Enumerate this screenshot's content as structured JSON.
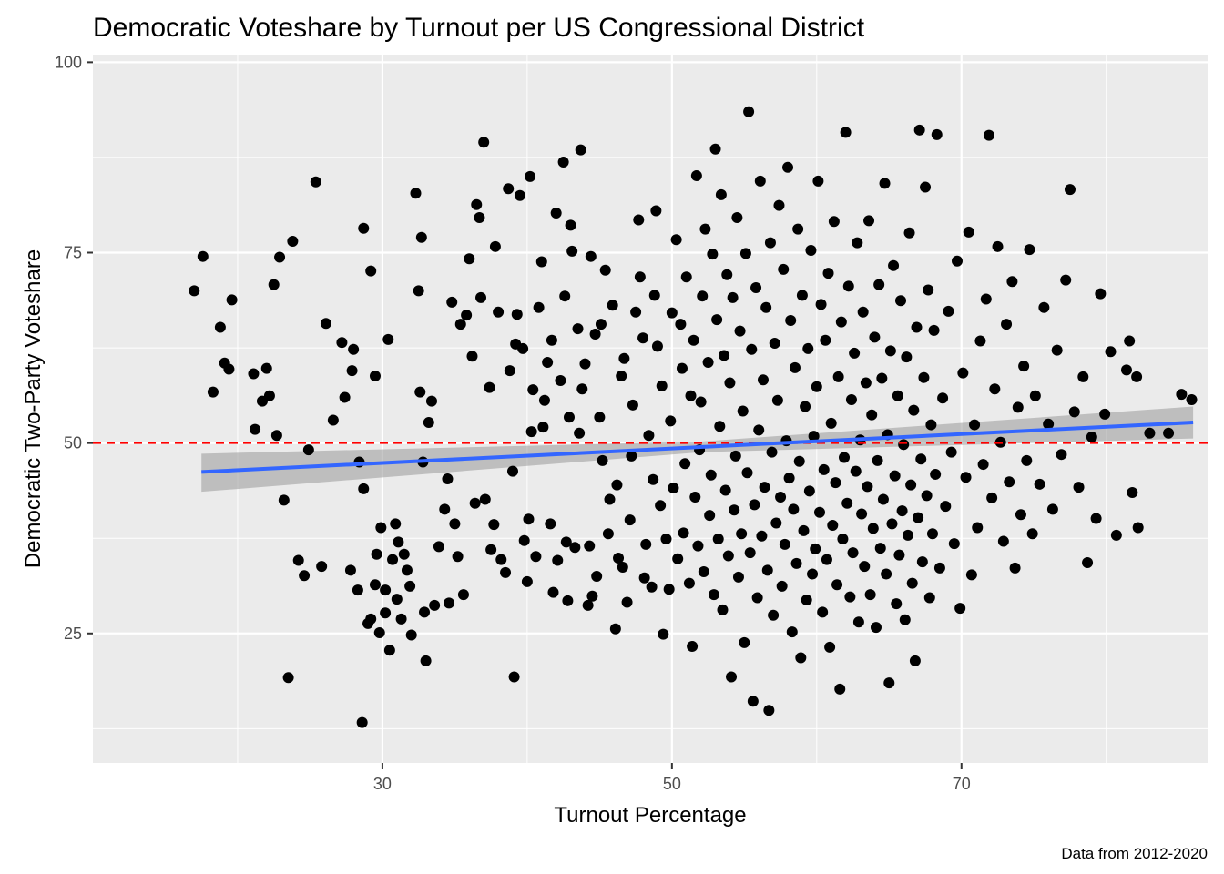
{
  "chart_data": {
    "type": "scatter",
    "title": "Democratic Voteshare by Turnout per US Congressional District",
    "xlabel": "Turnout Percentage",
    "ylabel": "Democratic Two-Party Voteshare",
    "caption": "Data from 2012-2020",
    "xlim": [
      10,
      87
    ],
    "ylim": [
      8,
      101
    ],
    "x_ticks": [
      30,
      50,
      70
    ],
    "y_ticks": [
      25,
      50,
      75,
      100
    ],
    "x_minor": [
      20,
      40,
      60,
      80
    ],
    "y_minor": [
      12.5,
      37.5,
      62.5,
      87.5
    ],
    "reference_line": {
      "y": 50,
      "color": "#ff0000",
      "style": "dashed"
    },
    "trend_line": {
      "x": [
        17.5,
        86
      ],
      "y": [
        46.2,
        52.7
      ],
      "color": "#3366ff"
    },
    "confidence_band": {
      "x": [
        17.5,
        52,
        86
      ],
      "lower": [
        43.6,
        48.8,
        50.6
      ],
      "upper": [
        48.6,
        50.2,
        54.8
      ],
      "color": "#999999"
    },
    "point_color": "#000000",
    "points": [
      [
        17,
        70
      ],
      [
        17.6,
        74.5
      ],
      [
        18.3,
        56.7
      ],
      [
        18.8,
        65.2
      ],
      [
        19.1,
        60.5
      ],
      [
        19.6,
        68.8
      ],
      [
        19.4,
        59.7
      ],
      [
        21.1,
        59.1
      ],
      [
        21.2,
        51.8
      ],
      [
        21.7,
        55.5
      ],
      [
        22,
        59.8
      ],
      [
        22.2,
        56.2
      ],
      [
        22.5,
        70.8
      ],
      [
        22.7,
        51
      ],
      [
        22.9,
        74.4
      ],
      [
        23.2,
        42.5
      ],
      [
        23.5,
        19.2
      ],
      [
        23.8,
        76.5
      ],
      [
        24.2,
        34.6
      ],
      [
        24.6,
        32.6
      ],
      [
        24.9,
        49.1
      ],
      [
        25.4,
        84.3
      ],
      [
        25.8,
        33.8
      ],
      [
        26.1,
        65.7
      ],
      [
        26.6,
        53
      ],
      [
        27.2,
        63.2
      ],
      [
        27.8,
        33.3
      ],
      [
        28.3,
        30.7
      ],
      [
        27.4,
        56
      ],
      [
        27.9,
        59.5
      ],
      [
        28.7,
        78.2
      ],
      [
        28.7,
        44
      ],
      [
        28,
        62.3
      ],
      [
        28.4,
        47.5
      ],
      [
        28.6,
        13.3
      ],
      [
        29,
        26.3
      ],
      [
        29.2,
        72.6
      ],
      [
        29.5,
        58.8
      ],
      [
        29.5,
        31.4
      ],
      [
        29.2,
        26.9
      ],
      [
        29.6,
        35.4
      ],
      [
        29.8,
        25.1
      ],
      [
        29.9,
        38.9
      ],
      [
        30.2,
        30.7
      ],
      [
        30.2,
        27.7
      ],
      [
        30.4,
        63.6
      ],
      [
        30.5,
        22.8
      ],
      [
        30.7,
        34.7
      ],
      [
        30.9,
        39.4
      ],
      [
        31,
        29.5
      ],
      [
        31.1,
        37
      ],
      [
        31.3,
        26.9
      ],
      [
        31.5,
        35.4
      ],
      [
        31.7,
        33.3
      ],
      [
        31.9,
        31.2
      ],
      [
        32,
        24.8
      ],
      [
        32.3,
        82.8
      ],
      [
        32.5,
        70
      ],
      [
        32.6,
        56.7
      ],
      [
        32.7,
        77
      ],
      [
        32.8,
        47.5
      ],
      [
        32.9,
        27.8
      ],
      [
        33,
        21.4
      ],
      [
        33.2,
        52.7
      ],
      [
        33.4,
        55.5
      ],
      [
        33.6,
        28.7
      ],
      [
        33.9,
        36.4
      ],
      [
        34.3,
        41.3
      ],
      [
        34.5,
        45.3
      ],
      [
        34.8,
        68.5
      ],
      [
        34.6,
        29
      ],
      [
        35,
        39.4
      ],
      [
        35.2,
        35.1
      ],
      [
        35.4,
        65.6
      ],
      [
        35.6,
        30.1
      ],
      [
        35.8,
        66.8
      ],
      [
        36,
        74.2
      ],
      [
        36.2,
        61.4
      ],
      [
        36.4,
        42.1
      ],
      [
        36.5,
        81.3
      ],
      [
        36.7,
        79.6
      ],
      [
        36.8,
        69.1
      ],
      [
        37,
        89.5
      ],
      [
        37.1,
        42.6
      ],
      [
        37.4,
        57.3
      ],
      [
        37.5,
        36
      ],
      [
        37.7,
        39.3
      ],
      [
        37.8,
        75.8
      ],
      [
        38,
        67.2
      ],
      [
        38.2,
        34.7
      ],
      [
        38.5,
        33
      ],
      [
        38.7,
        83.4
      ],
      [
        38.8,
        59.5
      ],
      [
        39,
        46.3
      ],
      [
        39.1,
        19.3
      ],
      [
        39.2,
        63
      ],
      [
        39.3,
        66.9
      ],
      [
        39.5,
        82.5
      ],
      [
        39.7,
        62.4
      ],
      [
        39.8,
        37.2
      ],
      [
        40,
        31.8
      ],
      [
        40.1,
        40
      ],
      [
        40.2,
        85
      ],
      [
        40.3,
        51.5
      ],
      [
        40.4,
        57
      ],
      [
        40.6,
        35.1
      ],
      [
        40.8,
        67.8
      ],
      [
        41,
        73.8
      ],
      [
        41.1,
        52.1
      ],
      [
        41.2,
        55.6
      ],
      [
        41.4,
        60.6
      ],
      [
        41.6,
        39.4
      ],
      [
        41.7,
        63.5
      ],
      [
        41.8,
        30.4
      ],
      [
        42,
        80.2
      ],
      [
        42.1,
        34.6
      ],
      [
        42.3,
        58.2
      ],
      [
        42.5,
        86.9
      ],
      [
        42.6,
        69.3
      ],
      [
        42.7,
        37
      ],
      [
        42.8,
        29.3
      ],
      [
        42.9,
        53.4
      ],
      [
        43,
        78.6
      ],
      [
        43.1,
        75.2
      ],
      [
        43.3,
        36.3
      ],
      [
        43.5,
        65
      ],
      [
        43.6,
        51.3
      ],
      [
        43.7,
        88.5
      ],
      [
        43.8,
        57.1
      ],
      [
        44,
        60.4
      ],
      [
        44.2,
        28.7
      ],
      [
        44.3,
        36.5
      ],
      [
        44.4,
        74.5
      ],
      [
        44.5,
        29.9
      ],
      [
        44.7,
        64.3
      ],
      [
        44.8,
        32.5
      ],
      [
        45,
        53.4
      ],
      [
        45.1,
        65.6
      ],
      [
        45.2,
        47.7
      ],
      [
        45.4,
        72.7
      ],
      [
        45.6,
        38.1
      ],
      [
        45.7,
        42.6
      ],
      [
        45.9,
        68.1
      ],
      [
        46.1,
        25.6
      ],
      [
        46.2,
        44.5
      ],
      [
        46.3,
        34.9
      ],
      [
        46.5,
        58.8
      ],
      [
        46.6,
        33.7
      ],
      [
        46.7,
        61.1
      ],
      [
        46.9,
        29.1
      ],
      [
        47.1,
        39.9
      ],
      [
        47.2,
        48.3
      ],
      [
        47.3,
        55
      ],
      [
        47.5,
        67.2
      ],
      [
        47.7,
        79.3
      ],
      [
        47.8,
        71.8
      ],
      [
        48,
        63.8
      ],
      [
        48.1,
        32.3
      ],
      [
        48.2,
        36.7
      ],
      [
        48.4,
        51
      ],
      [
        48.6,
        31.1
      ],
      [
        48.7,
        45.2
      ],
      [
        48.8,
        69.4
      ],
      [
        48.9,
        80.5
      ],
      [
        49,
        62.7
      ],
      [
        49.2,
        41.8
      ],
      [
        49.3,
        57.5
      ],
      [
        49.4,
        24.9
      ],
      [
        49.6,
        37.4
      ],
      [
        49.8,
        30.8
      ],
      [
        49.9,
        52.9
      ],
      [
        50,
        67.1
      ],
      [
        50.1,
        44.1
      ],
      [
        50.3,
        76.7
      ],
      [
        50.4,
        34.8
      ],
      [
        50.6,
        65.6
      ],
      [
        50.7,
        59.8
      ],
      [
        50.8,
        38.2
      ],
      [
        50.9,
        47.3
      ],
      [
        51,
        71.8
      ],
      [
        51.2,
        31.6
      ],
      [
        51.3,
        56.2
      ],
      [
        51.4,
        23.3
      ],
      [
        51.5,
        63.5
      ],
      [
        51.6,
        42.9
      ],
      [
        51.7,
        85.1
      ],
      [
        51.8,
        36.5
      ],
      [
        51.9,
        49.1
      ],
      [
        52,
        55.4
      ],
      [
        52.1,
        69.3
      ],
      [
        52.2,
        33.1
      ],
      [
        52.3,
        78.1
      ],
      [
        52.5,
        60.6
      ],
      [
        52.6,
        40.5
      ],
      [
        52.7,
        45.8
      ],
      [
        52.8,
        74.8
      ],
      [
        52.9,
        30.1
      ],
      [
        53,
        88.6
      ],
      [
        53.1,
        66.2
      ],
      [
        53.2,
        37.4
      ],
      [
        53.3,
        52.2
      ],
      [
        53.4,
        82.6
      ],
      [
        53.5,
        28.1
      ],
      [
        53.6,
        61.5
      ],
      [
        53.7,
        43.8
      ],
      [
        53.8,
        72.1
      ],
      [
        53.9,
        35.2
      ],
      [
        54,
        57.9
      ],
      [
        54.1,
        19.3
      ],
      [
        54.2,
        69.1
      ],
      [
        54.3,
        41.2
      ],
      [
        54.4,
        48.3
      ],
      [
        54.5,
        79.6
      ],
      [
        54.6,
        32.4
      ],
      [
        54.7,
        64.7
      ],
      [
        54.8,
        38.1
      ],
      [
        54.9,
        54.2
      ],
      [
        55,
        23.8
      ],
      [
        55.1,
        74.9
      ],
      [
        55.2,
        46.1
      ],
      [
        55.3,
        93.5
      ],
      [
        55.4,
        35.6
      ],
      [
        55.5,
        62.3
      ],
      [
        55.6,
        16.1
      ],
      [
        55.7,
        41.9
      ],
      [
        55.8,
        70.4
      ],
      [
        55.9,
        29.7
      ],
      [
        56,
        51.7
      ],
      [
        56.1,
        84.4
      ],
      [
        56.2,
        37.8
      ],
      [
        56.3,
        58.3
      ],
      [
        56.4,
        44.2
      ],
      [
        56.5,
        67.8
      ],
      [
        56.6,
        33.3
      ],
      [
        56.7,
        14.9
      ],
      [
        56.8,
        76.3
      ],
      [
        56.9,
        48.8
      ],
      [
        57,
        27.4
      ],
      [
        57.1,
        63.1
      ],
      [
        57.2,
        39.5
      ],
      [
        57.3,
        55.6
      ],
      [
        57.4,
        81.2
      ],
      [
        57.5,
        42.9
      ],
      [
        57.6,
        31.2
      ],
      [
        57.7,
        72.8
      ],
      [
        57.8,
        36.7
      ],
      [
        57.9,
        50.3
      ],
      [
        58,
        86.2
      ],
      [
        58.1,
        45.4
      ],
      [
        58.2,
        66.1
      ],
      [
        58.3,
        25.2
      ],
      [
        58.4,
        41.3
      ],
      [
        58.5,
        59.9
      ],
      [
        58.6,
        34.2
      ],
      [
        58.7,
        78.1
      ],
      [
        58.8,
        47.6
      ],
      [
        58.9,
        21.8
      ],
      [
        59,
        69.4
      ],
      [
        59.1,
        38.5
      ],
      [
        59.2,
        54.8
      ],
      [
        59.3,
        29.4
      ],
      [
        59.4,
        62.4
      ],
      [
        59.5,
        43.7
      ],
      [
        59.6,
        75.3
      ],
      [
        59.7,
        32.8
      ],
      [
        59.8,
        50.9
      ],
      [
        59.9,
        36.1
      ],
      [
        60,
        57.4
      ],
      [
        60.1,
        84.4
      ],
      [
        60.2,
        40.9
      ],
      [
        60.3,
        68.2
      ],
      [
        60.4,
        27.8
      ],
      [
        60.5,
        46.5
      ],
      [
        60.6,
        63.5
      ],
      [
        60.7,
        34.7
      ],
      [
        60.8,
        72.3
      ],
      [
        60.9,
        23.2
      ],
      [
        61,
        52.6
      ],
      [
        61.1,
        39.2
      ],
      [
        61.2,
        79.1
      ],
      [
        61.3,
        44.8
      ],
      [
        61.4,
        31.4
      ],
      [
        61.5,
        58.7
      ],
      [
        61.6,
        17.7
      ],
      [
        61.7,
        65.9
      ],
      [
        61.8,
        37.4
      ],
      [
        61.9,
        48.1
      ],
      [
        62,
        90.8
      ],
      [
        62.1,
        42.1
      ],
      [
        62.2,
        70.6
      ],
      [
        62.3,
        29.8
      ],
      [
        62.4,
        55.7
      ],
      [
        62.5,
        35.6
      ],
      [
        62.6,
        61.8
      ],
      [
        62.7,
        46.3
      ],
      [
        62.8,
        76.3
      ],
      [
        62.9,
        26.5
      ],
      [
        63,
        50.4
      ],
      [
        63.1,
        40.7
      ],
      [
        63.2,
        67.2
      ],
      [
        63.3,
        33.8
      ],
      [
        63.4,
        57.9
      ],
      [
        63.5,
        44.3
      ],
      [
        63.6,
        79.2
      ],
      [
        63.7,
        30.1
      ],
      [
        63.8,
        53.7
      ],
      [
        63.9,
        38.8
      ],
      [
        64,
        63.9
      ],
      [
        64.1,
        25.8
      ],
      [
        64.2,
        47.7
      ],
      [
        64.3,
        70.8
      ],
      [
        64.4,
        36.2
      ],
      [
        64.5,
        58.5
      ],
      [
        64.6,
        42.6
      ],
      [
        64.7,
        84.1
      ],
      [
        64.8,
        32.8
      ],
      [
        64.9,
        51.1
      ],
      [
        65,
        18.5
      ],
      [
        65.1,
        62.1
      ],
      [
        65.2,
        39.4
      ],
      [
        65.3,
        73.3
      ],
      [
        65.4,
        45.7
      ],
      [
        65.5,
        28.9
      ],
      [
        65.6,
        56.2
      ],
      [
        65.7,
        35.3
      ],
      [
        65.8,
        68.7
      ],
      [
        65.9,
        41.1
      ],
      [
        66,
        49.8
      ],
      [
        66.1,
        26.8
      ],
      [
        66.2,
        61.3
      ],
      [
        66.3,
        37.9
      ],
      [
        66.4,
        77.6
      ],
      [
        66.5,
        44.5
      ],
      [
        66.6,
        31.6
      ],
      [
        66.7,
        54.3
      ],
      [
        66.8,
        21.4
      ],
      [
        66.9,
        65.2
      ],
      [
        67,
        40.2
      ],
      [
        67.1,
        91.1
      ],
      [
        67.2,
        47.9
      ],
      [
        67.3,
        34.4
      ],
      [
        67.4,
        58.6
      ],
      [
        67.5,
        83.6
      ],
      [
        67.6,
        43.1
      ],
      [
        67.7,
        70.1
      ],
      [
        67.8,
        29.7
      ],
      [
        67.9,
        52.4
      ],
      [
        68,
        38.1
      ],
      [
        68.1,
        64.8
      ],
      [
        68.2,
        45.9
      ],
      [
        68.3,
        90.5
      ],
      [
        68.5,
        33.6
      ],
      [
        68.7,
        55.9
      ],
      [
        68.9,
        41.7
      ],
      [
        69.1,
        67.3
      ],
      [
        69.3,
        48.8
      ],
      [
        69.5,
        36.8
      ],
      [
        69.7,
        73.9
      ],
      [
        69.9,
        28.3
      ],
      [
        70.1,
        59.2
      ],
      [
        70.3,
        45.5
      ],
      [
        70.5,
        77.7
      ],
      [
        70.7,
        32.7
      ],
      [
        70.9,
        52.4
      ],
      [
        71.1,
        38.9
      ],
      [
        71.3,
        63.4
      ],
      [
        71.5,
        47.2
      ],
      [
        71.7,
        68.9
      ],
      [
        71.9,
        90.4
      ],
      [
        72.1,
        42.8
      ],
      [
        72.3,
        57.1
      ],
      [
        72.5,
        75.8
      ],
      [
        72.7,
        50.1
      ],
      [
        72.9,
        37.1
      ],
      [
        73.1,
        65.6
      ],
      [
        73.3,
        44.9
      ],
      [
        73.5,
        71.2
      ],
      [
        73.7,
        33.6
      ],
      [
        73.9,
        54.7
      ],
      [
        74.1,
        40.6
      ],
      [
        74.3,
        60.1
      ],
      [
        74.5,
        47.7
      ],
      [
        74.7,
        75.4
      ],
      [
        74.9,
        38.1
      ],
      [
        75.1,
        56.2
      ],
      [
        75.4,
        44.6
      ],
      [
        75.7,
        67.8
      ],
      [
        76,
        52.5
      ],
      [
        76.3,
        41.3
      ],
      [
        76.6,
        62.2
      ],
      [
        76.9,
        48.5
      ],
      [
        77.2,
        71.4
      ],
      [
        77.5,
        83.3
      ],
      [
        77.8,
        54.1
      ],
      [
        78.1,
        44.2
      ],
      [
        78.4,
        58.7
      ],
      [
        78.7,
        34.3
      ],
      [
        79,
        50.8
      ],
      [
        79.3,
        40.1
      ],
      [
        79.6,
        69.6
      ],
      [
        79.9,
        53.8
      ],
      [
        80.3,
        62
      ],
      [
        80.7,
        37.9
      ],
      [
        81.4,
        59.6
      ],
      [
        81.6,
        63.4
      ],
      [
        81.8,
        43.5
      ],
      [
        82.1,
        58.7
      ],
      [
        82.2,
        38.9
      ],
      [
        83,
        51.3
      ],
      [
        84.3,
        51.3
      ],
      [
        85.2,
        56.4
      ],
      [
        85.9,
        55.7
      ]
    ]
  }
}
